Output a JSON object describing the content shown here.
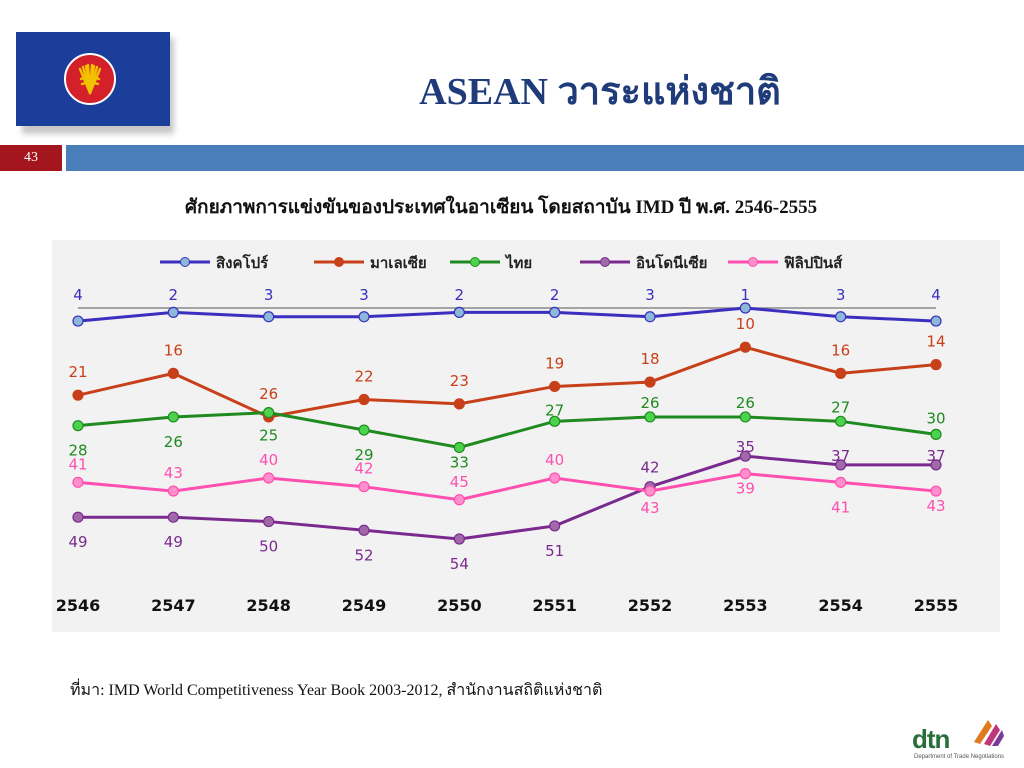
{
  "slide": {
    "title": "ASEAN วาระแห่งชาติ",
    "page_number": "43",
    "subtitle": "ศักยภาพการแข่งขันของประเทศในอาเซียน โดยสถาบัน IMD ปี พ.ศ. 2546-2555",
    "source": "ที่มา: IMD World Competitiveness Year Book 2003-2012, สำนักงานสถิติแห่งชาติ",
    "logo_text": "dtn",
    "logo_subtext": "Department of Trade Negotiations"
  },
  "colors": {
    "flag_blue": "#1a3e9a",
    "flag_red": "#d3202a",
    "emblem_yellow": "#f2c200",
    "title_color": "#1f3b7a",
    "page_bar": "#a4161d",
    "header_bar": "#4a7ebb"
  },
  "chart_data": {
    "type": "line",
    "x": [
      "2546",
      "2547",
      "2548",
      "2549",
      "2550",
      "2551",
      "2552",
      "2553",
      "2554",
      "2555"
    ],
    "ylim": [
      1,
      54
    ],
    "y_inverted": true,
    "grid": false,
    "legend_position": "top",
    "series": [
      {
        "name": "สิงคโปร์",
        "color": "#3a2fbf",
        "marker": "#8db8d8",
        "values": [
          4,
          2,
          3,
          3,
          2,
          2,
          3,
          1,
          3,
          4
        ]
      },
      {
        "name": "มาเลเซีย",
        "color": "#c8401a",
        "marker": "#c8401a",
        "values": [
          21,
          16,
          26,
          22,
          23,
          19,
          18,
          10,
          16,
          14
        ]
      },
      {
        "name": "ไทย",
        "color": "#1f8a1f",
        "marker": "#4bd44b",
        "values": [
          28,
          26,
          25,
          29,
          33,
          27,
          26,
          26,
          27,
          30
        ]
      },
      {
        "name": "อินโดนีเซีย",
        "color": "#7a2a8e",
        "marker": "#a06aa8",
        "values": [
          49,
          49,
          50,
          52,
          54,
          51,
          42,
          35,
          37,
          37
        ]
      },
      {
        "name": "ฟิลิปปินส์",
        "color": "#ff4fb0",
        "marker": "#ff8fcc",
        "values": [
          41,
          43,
          40,
          42,
          45,
          40,
          43,
          39,
          41,
          43
        ]
      }
    ]
  }
}
